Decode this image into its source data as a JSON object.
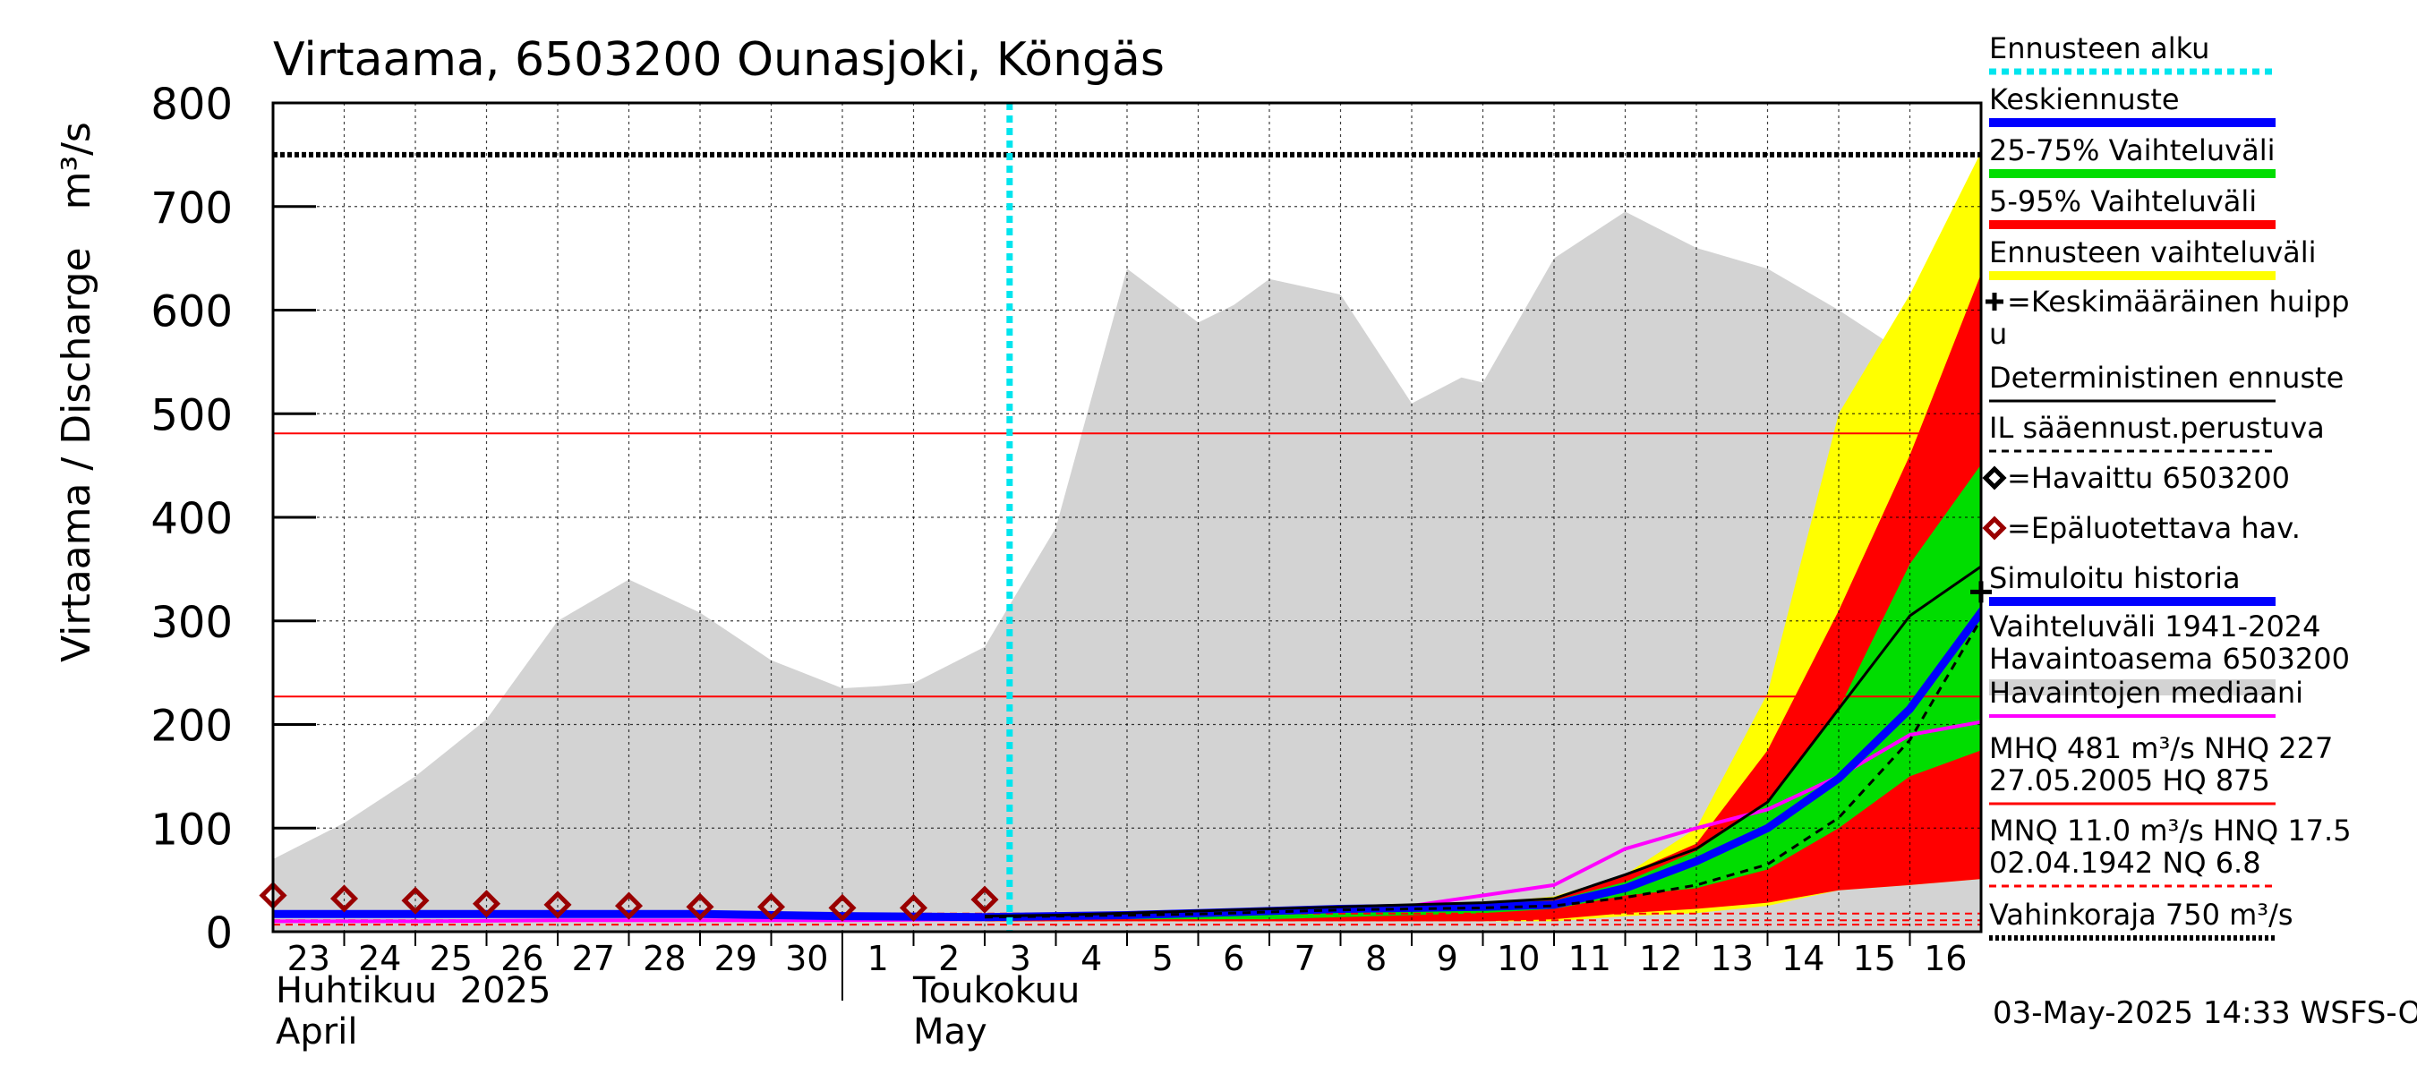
{
  "chart_data": {
    "type": "area",
    "title": "Virtaama, 6503200 Ounasjoki, Köngäs",
    "ylabel": "Virtaama / Discharge   m³/s",
    "ylim": [
      0,
      800
    ],
    "y_ticks": [
      "0",
      "100",
      "200",
      "300",
      "400",
      "500",
      "600",
      "700",
      "800"
    ],
    "x_days": [
      23,
      24,
      25,
      26,
      27,
      28,
      29,
      30,
      1,
      2,
      3,
      4,
      5,
      6,
      7,
      8,
      9,
      10,
      11,
      12,
      13,
      14,
      15,
      16
    ],
    "x_tick_labels": [
      "23",
      "24",
      "25",
      "26",
      "27",
      "28",
      "29",
      "30",
      "1",
      "2",
      "3",
      "4",
      "5",
      "6",
      "7",
      "8",
      "9",
      "10",
      "11",
      "12",
      "13",
      "14",
      "15",
      "16"
    ],
    "month_labels": {
      "april_fi": "Huhtikuu  2025",
      "april_en": "April",
      "may_fi": "Toukokuu",
      "may_en": "May"
    },
    "timestamp": "03-May-2025 14:33 WSFS-O",
    "forecast_start_day": 10.35,
    "reference_lines": {
      "MHQ": 481,
      "NHQ": 227,
      "HQ": 875,
      "MNQ": 11.0,
      "HNQ": 17.5,
      "NQ": 6.8,
      "damage_level": 750
    },
    "history_range": {
      "name": "Vaihteluväli 1941-2024",
      "x": [
        0,
        1,
        2,
        3,
        4,
        5,
        6,
        7,
        8,
        8.5,
        9,
        10,
        11,
        12,
        13,
        13.5,
        14,
        15,
        16,
        16.7,
        17,
        18,
        19,
        20,
        21,
        22,
        23,
        24.2
      ],
      "upper": [
        70,
        105,
        150,
        205,
        300,
        340,
        308,
        262,
        235,
        237,
        240,
        275,
        390,
        640,
        588,
        605,
        630,
        615,
        510,
        535,
        530,
        650,
        695,
        660,
        640,
        600,
        555,
        555
      ],
      "lower": [
        0,
        0,
        0,
        0,
        0,
        0,
        0,
        0,
        0,
        0,
        0,
        0,
        0,
        0,
        0,
        0,
        0,
        0,
        0,
        0,
        0,
        0,
        0,
        0,
        0,
        0,
        0,
        0
      ]
    },
    "forecast_x": [
      10,
      11,
      12,
      13,
      14,
      15,
      16,
      17,
      18,
      19,
      20,
      21,
      22,
      23,
      24.2
    ],
    "band_forecast_range": {
      "upper": [
        15,
        16,
        18,
        20,
        22,
        24,
        26,
        28,
        34,
        55,
        100,
        230,
        500,
        615,
        780
      ],
      "lower": [
        10,
        10,
        10,
        10,
        10,
        10,
        10,
        10,
        10,
        15,
        18,
        25,
        40,
        45,
        52
      ]
    },
    "band_5_95": {
      "upper": [
        15,
        16,
        18,
        20,
        22,
        24,
        26,
        28,
        32,
        55,
        85,
        175,
        310,
        460,
        670
      ],
      "lower": [
        10,
        10,
        10,
        10,
        10,
        10,
        10,
        10,
        12,
        18,
        22,
        28,
        40,
        45,
        52
      ]
    },
    "band_25_75": {
      "upper": [
        15,
        16,
        18,
        20,
        22,
        24,
        26,
        28,
        30,
        48,
        78,
        125,
        215,
        355,
        470
      ],
      "lower": [
        12,
        12,
        12,
        12,
        12,
        14,
        16,
        18,
        22,
        35,
        42,
        60,
        100,
        150,
        180
      ]
    },
    "series": [
      {
        "name": "Keskiennuste",
        "x": [
          10,
          11,
          12,
          13,
          14,
          15,
          16,
          17,
          18,
          19,
          20,
          21,
          22,
          23,
          24.2
        ],
        "values": [
          14,
          15,
          16,
          18,
          20,
          22,
          23,
          24,
          26,
          42,
          68,
          100,
          148,
          215,
          327
        ],
        "color": "#0000ff"
      },
      {
        "name": "Deterministinen ennuste",
        "x": [
          10,
          11,
          12,
          13,
          14,
          15,
          16,
          17,
          18,
          19,
          20,
          21,
          22,
          23,
          24.2
        ],
        "values": [
          15,
          16,
          18,
          20,
          22,
          24,
          26,
          28,
          32,
          55,
          80,
          125,
          215,
          305,
          362
        ],
        "color": "#000000"
      },
      {
        "name": "IL sääennust.perustuva",
        "x": [
          10,
          11,
          12,
          13,
          14,
          15,
          16,
          17,
          18,
          19,
          20,
          21,
          22,
          23,
          24.2
        ],
        "values": [
          14,
          15,
          16,
          17,
          19,
          21,
          22,
          23,
          25,
          33,
          45,
          65,
          110,
          185,
          325
        ],
        "color": "#000000"
      },
      {
        "name": "Havaintojen mediaani",
        "x": [
          0,
          2,
          4,
          6,
          8,
          10,
          12,
          14,
          16,
          17,
          18,
          19,
          20,
          21,
          22,
          23,
          24.2
        ],
        "values": [
          10,
          10,
          11,
          11,
          11,
          12,
          16,
          20,
          25,
          35,
          45,
          80,
          100,
          118,
          150,
          190,
          205
        ],
        "color": "#ff00ff"
      },
      {
        "name": "Simuloitu historia",
        "x": [
          0,
          2,
          4,
          6,
          8,
          10
        ],
        "values": [
          17,
          17,
          17,
          17,
          15,
          14
        ],
        "color": "#0000ff"
      },
      {
        "name": "Epäluotettava hav.",
        "x": [
          0,
          1,
          2,
          3,
          4,
          5,
          6,
          7,
          8,
          9,
          10
        ],
        "values": [
          35,
          32,
          30,
          27,
          26,
          25,
          24,
          24,
          23,
          23,
          31
        ],
        "color": "#990000"
      }
    ],
    "mean_peak": {
      "x": 24.0,
      "value": 328
    },
    "legend": [
      {
        "label": "Ennusteen alku",
        "color": "#00e5ee",
        "style": "dotted"
      },
      {
        "label": "Keskiennuste",
        "color": "#0000ff",
        "style": "thick"
      },
      {
        "label": "25-75% Vaihteluväli",
        "color": "#00dd00",
        "style": "thick"
      },
      {
        "label": "5-95% Vaihteluväli",
        "color": "#ff0000",
        "style": "thick"
      },
      {
        "label": "Ennusteen vaihteluväli",
        "color": "#ffff00",
        "style": "thick"
      },
      {
        "label": "=Keskimääräinen huipp",
        "label2": "u",
        "color": "#000000",
        "style": "cross"
      },
      {
        "label": "Deterministinen ennuste",
        "color": "#000000",
        "style": "thin"
      },
      {
        "label": "IL sääennust.perustuva",
        "color": "#000000",
        "style": "dashed"
      },
      {
        "label": "=Havaittu 6503200",
        "color": "#000000",
        "style": "diamond"
      },
      {
        "label": "=Epäluotettava hav.",
        "color": "#990000",
        "style": "diamond"
      },
      {
        "label": "Simuloitu historia",
        "color": "#0000ff",
        "style": "thick"
      },
      {
        "label": "Vaihteluväli 1941-2024",
        "label2": " Havaintoasema 6503200",
        "color": "#d3d3d3",
        "style": "grey"
      },
      {
        "label": "Havaintojen mediaani",
        "color": "#ff00ff",
        "style": "medium"
      },
      {
        "label": "MHQ  481 m³/s NHQ  227",
        "label2": "27.05.2005 HQ  875",
        "color": "#ff0000",
        "style": "thin"
      },
      {
        "label": "MNQ 11.0 m³/s HNQ 17.5",
        "label2": "02.04.1942 NQ  6.8",
        "color": "#ff0000",
        "style": "dashed"
      },
      {
        "label": "Vahinkoraja 750 m³/s",
        "color": "#000000",
        "style": "dotted-black"
      }
    ],
    "colors": {
      "grey": "#d3d3d3",
      "yellow": "#ffff00",
      "red": "#ff0000",
      "green": "#00dd00",
      "blue": "#0000ff",
      "magenta": "#ff00ff",
      "cyan": "#00e5ee",
      "marker": "#990000"
    }
  }
}
